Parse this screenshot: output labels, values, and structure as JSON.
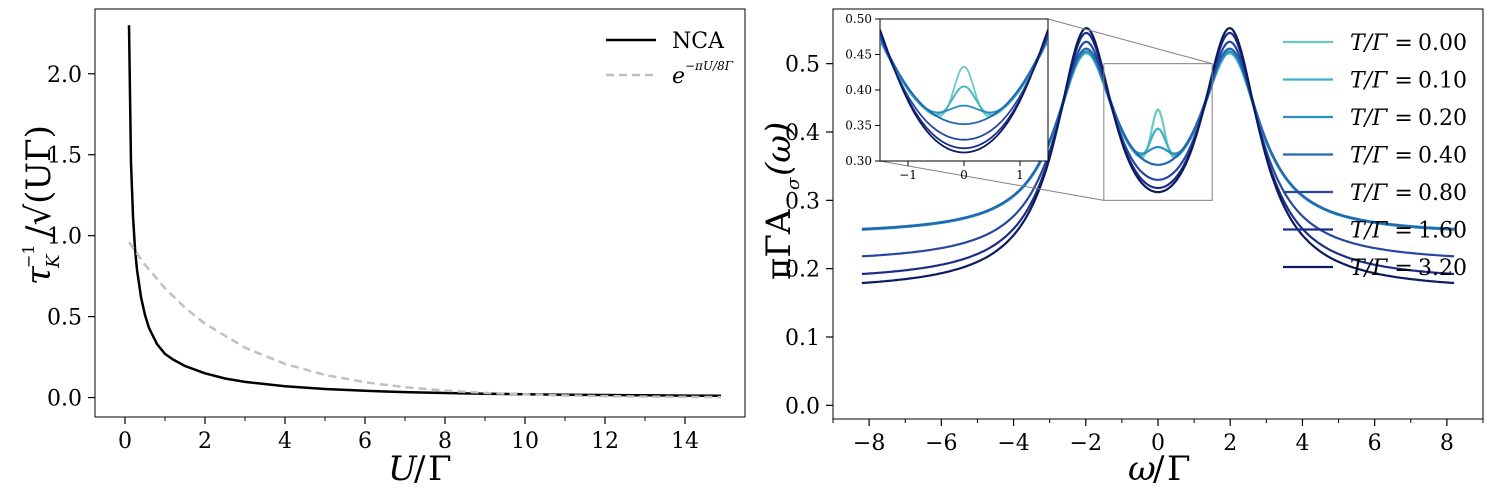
{
  "chart_data": [
    {
      "type": "line",
      "panel": "left",
      "xlabel_main": "U",
      "xlabel_sep": "/",
      "xlabel_den": "Γ",
      "ylabel_main": "τ",
      "ylabel_sub": "K",
      "ylabel_sup": "−1",
      "ylabel_rest": "/√(UΓ)",
      "xlim": [
        -0.75,
        15.5
      ],
      "ylim": [
        -0.12,
        2.4
      ],
      "xticks": [
        0,
        2,
        4,
        6,
        8,
        10,
        12,
        14
      ],
      "xtick_labels": [
        "0",
        "2",
        "4",
        "6",
        "8",
        "10",
        "12",
        "14"
      ],
      "yticks": [
        0.0,
        0.5,
        1.0,
        1.5,
        2.0
      ],
      "ytick_labels": [
        "0.0",
        "0.5",
        "1.0",
        "1.5",
        "2.0"
      ],
      "legend_position": "top-right",
      "series": [
        {
          "name": "NCA",
          "label": "NCA",
          "color": "#000000",
          "style": "solid",
          "x": [
            0.1,
            0.15,
            0.2,
            0.25,
            0.3,
            0.4,
            0.5,
            0.6,
            0.8,
            1.0,
            1.2,
            1.5,
            2.0,
            2.5,
            3.0,
            4.0,
            5.0,
            6.0,
            7.0,
            8.0,
            9.0,
            10.0,
            11.0,
            12.0,
            13.0,
            14.0,
            14.9
          ],
          "y": [
            2.3,
            1.45,
            1.12,
            0.92,
            0.79,
            0.62,
            0.51,
            0.43,
            0.33,
            0.27,
            0.235,
            0.195,
            0.15,
            0.118,
            0.097,
            0.07,
            0.053,
            0.042,
            0.034,
            0.028,
            0.024,
            0.02,
            0.018,
            0.016,
            0.014,
            0.012,
            0.011
          ]
        },
        {
          "name": "exp(-πU/8Γ)",
          "label_base": "e",
          "label_exponent": "−πU/8Γ",
          "color": "#c0c0c0",
          "style": "dashed",
          "formula": "exp(-pi*U/8)",
          "x": [
            0.1,
            0.5,
            1.0,
            1.5,
            2.0,
            3.0,
            4.0,
            5.0,
            6.0,
            7.0,
            8.0,
            9.0,
            10.0,
            11.0,
            12.0,
            13.0,
            14.0,
            14.9
          ],
          "y": [
            0.96,
            0.82,
            0.675,
            0.555,
            0.456,
            0.308,
            0.208,
            0.14,
            0.095,
            0.064,
            0.043,
            0.029,
            0.02,
            0.013,
            0.009,
            0.006,
            0.004,
            0.003
          ]
        }
      ]
    },
    {
      "type": "line",
      "panel": "right",
      "xlabel_main": "ω",
      "xlabel_sep": "/",
      "xlabel_den": "Γ",
      "ylabel_main": "πΓA",
      "ylabel_sub": "σ",
      "ylabel_rest": "(ω)",
      "xlim": [
        -9,
        9
      ],
      "ylim": [
        -0.02,
        0.58
      ],
      "xticks": [
        -8,
        -6,
        -4,
        -2,
        0,
        2,
        4,
        6,
        8
      ],
      "xtick_labels": [
        "−8",
        "−6",
        "−4",
        "−2",
        "0",
        "2",
        "4",
        "6",
        "8"
      ],
      "yticks": [
        0.0,
        0.1,
        0.2,
        0.3,
        0.4,
        0.5
      ],
      "ytick_labels": [
        "0.0",
        "0.1",
        "0.2",
        "0.3",
        "0.4",
        "0.5"
      ],
      "legend_position": "top-right",
      "model": {
        "description": "two Lorentzian Hubbard peaks at ±2 plus a Kondo resonance at 0 that melts with temperature",
        "peak_centers": [
          -2,
          2
        ],
        "peak_width": 1.0
      },
      "series": [
        {
          "name": "T/Γ = 0.00",
          "label_var": "T/Γ",
          "label_value": "0.00",
          "color": "#6cc9c4",
          "peak_height": 0.515,
          "central_value": 0.433,
          "kondo_width": 0.18
        },
        {
          "name": "T/Γ = 0.10",
          "label_var": "T/Γ",
          "label_value": "0.10",
          "color": "#3fb2c6",
          "peak_height": 0.516,
          "central_value": 0.405,
          "kondo_width": 0.22
        },
        {
          "name": "T/Γ = 0.20",
          "label_var": "T/Γ",
          "label_value": "0.20",
          "color": "#2a8fc0",
          "peak_height": 0.518,
          "central_value": 0.378,
          "kondo_width": 0.3
        },
        {
          "name": "T/Γ = 0.40",
          "label_var": "T/Γ",
          "label_value": "0.40",
          "color": "#2267b0",
          "peak_height": 0.522,
          "central_value": 0.352,
          "kondo_width": 0.0
        },
        {
          "name": "T/Γ = 0.80",
          "label_var": "T/Γ",
          "label_value": "0.80",
          "color": "#2547a0",
          "peak_height": 0.532,
          "central_value": 0.33,
          "kondo_width": 0.0
        },
        {
          "name": "T/Γ = 1.60",
          "label_var": "T/Γ",
          "label_value": "1.60",
          "color": "#1d2d86",
          "peak_height": 0.545,
          "central_value": 0.318,
          "kondo_width": 0.0
        },
        {
          "name": "T/Γ = 3.20",
          "label_var": "T/Γ",
          "label_value": "3.20",
          "color": "#0c1b5e",
          "peak_height": 0.552,
          "central_value": 0.312,
          "kondo_width": 0.0
        }
      ],
      "inset": {
        "xlim": [
          -1.5,
          1.5
        ],
        "ylim": [
          0.3,
          0.5
        ],
        "xticks": [
          -1,
          0,
          1
        ],
        "xtick_labels": [
          "−1",
          "0",
          "1"
        ],
        "yticks": [
          0.3,
          0.35,
          0.4,
          0.45,
          0.5
        ],
        "ytick_labels": [
          "0.30",
          "0.35",
          "0.40",
          "0.45",
          "0.50"
        ],
        "zoom_region": {
          "xlim": [
            -1.5,
            1.5
          ],
          "ylim": [
            0.3,
            0.5
          ]
        }
      }
    }
  ]
}
